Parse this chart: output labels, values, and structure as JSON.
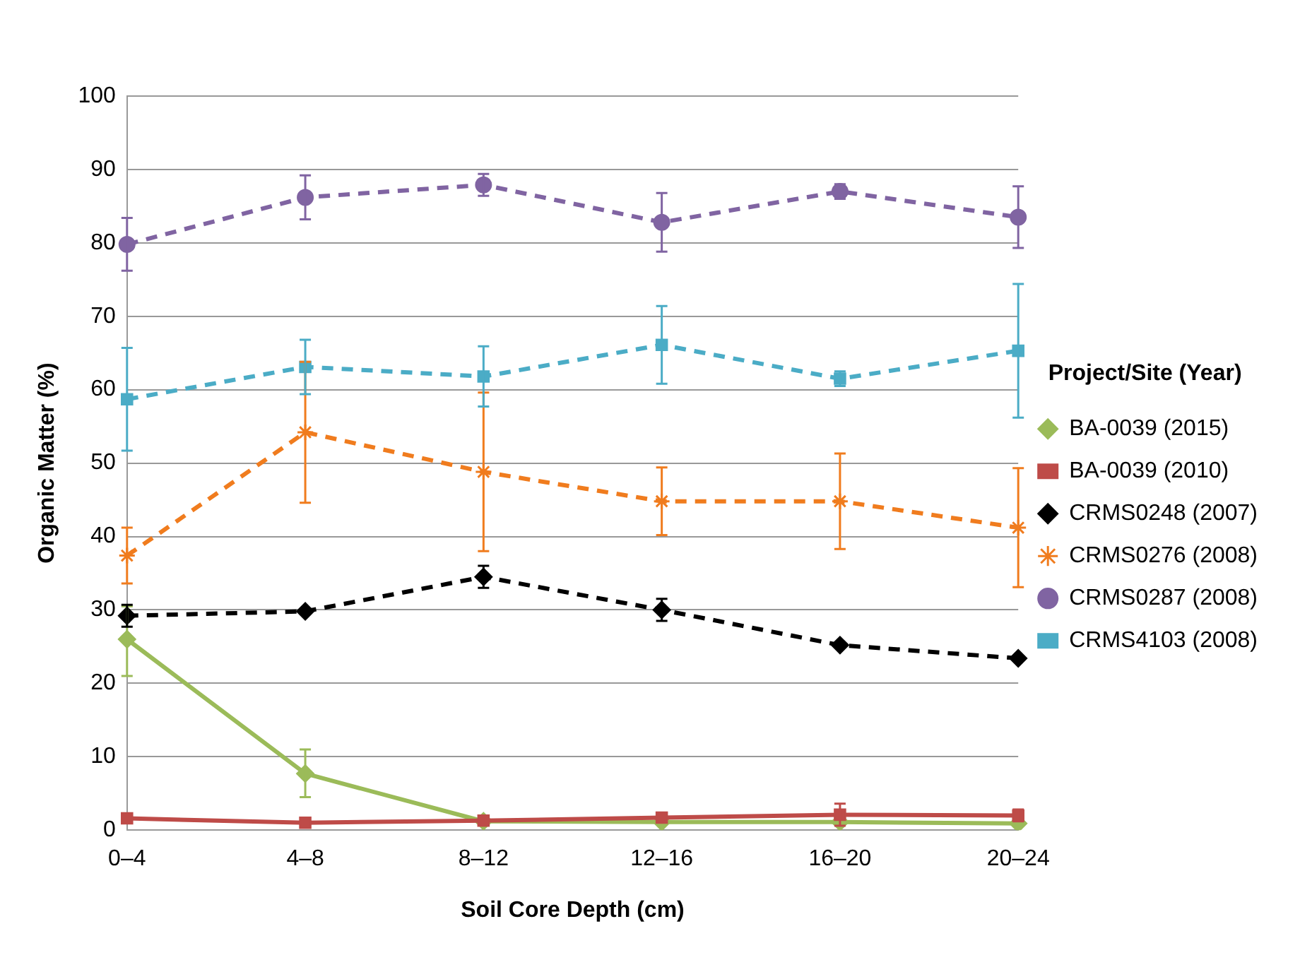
{
  "chart_data": {
    "type": "line",
    "xlabel": "Soil Core Depth (cm)",
    "ylabel": "Organic Matter (%)",
    "legend_title": "Project/Site (Year)",
    "legend": "right",
    "grid": "y",
    "categories": [
      "0–4",
      "4–8",
      "8–12",
      "12–16",
      "16–20",
      "20–24"
    ],
    "ylim": [
      0,
      100
    ],
    "yticks": [
      0,
      10,
      20,
      30,
      40,
      50,
      60,
      70,
      80,
      90,
      100
    ],
    "series": [
      {
        "name": "BA-0039 (2015)",
        "color": "#9bbb59",
        "marker": "diamond",
        "line_style": "solid",
        "values": [
          26,
          7.7,
          1.2,
          1.1,
          1.1,
          0.9
        ],
        "errors": [
          [
            21,
            30.5
          ],
          [
            4.5,
            11
          ],
          null,
          null,
          null,
          null
        ]
      },
      {
        "name": "BA-0039 (2010)",
        "color": "#be4b48",
        "marker": "square",
        "line_style": "solid",
        "values": [
          1.6,
          1.0,
          1.3,
          1.7,
          2.1,
          2.0
        ],
        "errors": [
          null,
          null,
          null,
          null,
          1.5,
          0.8
        ]
      },
      {
        "name": "CRMS0248 (2007)",
        "color": "#000000",
        "marker": "diamond",
        "line_style": "dashed",
        "values": [
          29.2,
          29.8,
          34.5,
          30,
          25.2,
          23.4
        ],
        "errors": [
          1.5,
          null,
          1.5,
          1.5,
          null,
          null
        ]
      },
      {
        "name": "CRMS0276 (2008)",
        "color": "#f07c1e",
        "marker": "cross",
        "line_style": "dashed",
        "values": [
          37.4,
          54.2,
          48.8,
          44.8,
          44.8,
          41.2
        ],
        "errors": [
          3.8,
          9.6,
          10.8,
          4.6,
          6.5,
          8.1
        ]
      },
      {
        "name": "CRMS0287 (2008)",
        "color": "#8064a2",
        "marker": "circle",
        "line_style": "dashed",
        "values": [
          79.8,
          86.2,
          87.9,
          82.8,
          87.0,
          83.5
        ],
        "errors": [
          3.6,
          3,
          1.5,
          4,
          1,
          4.2
        ]
      },
      {
        "name": "CRMS4103 (2008)",
        "color": "#4bacc6",
        "marker": "square",
        "line_style": "dashed",
        "values": [
          58.7,
          63.1,
          61.8,
          66.1,
          61.5,
          65.3
        ],
        "errors": [
          7,
          3.7,
          4.1,
          5.3,
          1,
          9.1
        ]
      }
    ]
  }
}
